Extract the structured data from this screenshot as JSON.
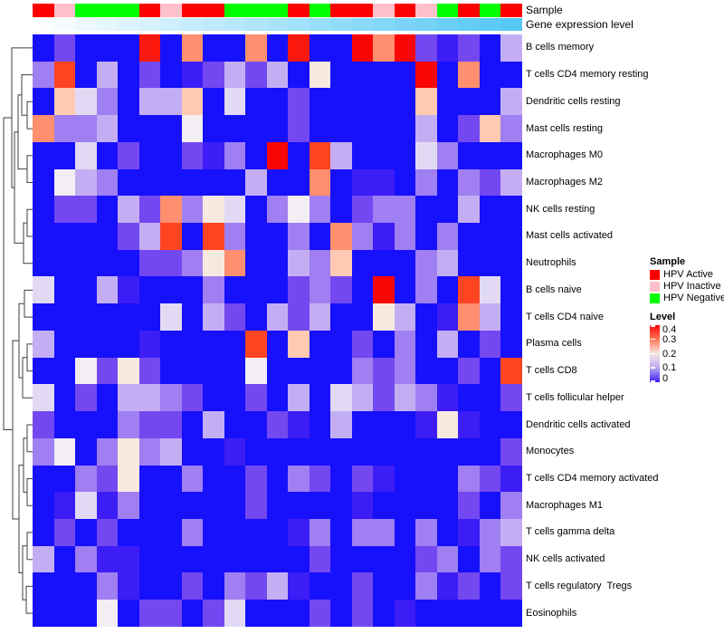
{
  "annotations": {
    "sample_label": "Sample",
    "gene_label": "Gene expression level",
    "sample_values": [
      "red",
      "pink",
      "green",
      "green",
      "green",
      "red",
      "pink",
      "red",
      "red",
      "green",
      "green",
      "green",
      "red",
      "green",
      "red",
      "red",
      "pink",
      "red",
      "pink",
      "green",
      "red",
      "green",
      "red"
    ],
    "sample_colors": {
      "red": "#FF0000",
      "pink": "#FFC0CB",
      "green": "#00FF00"
    },
    "gene_gradient": {
      "start": "#FCFEFF",
      "end": "#55C8F4"
    }
  },
  "chart_data": {
    "type": "heatmap",
    "n_columns": 23,
    "value_label": "Level",
    "value_range": [
      0,
      0.4
    ],
    "color_scale_anchors": [
      [
        0.0,
        "#0D0DFC"
      ],
      [
        0.05,
        "#3C1DF5"
      ],
      [
        0.08,
        "#7448F0"
      ],
      [
        0.11,
        "#9F7FF1"
      ],
      [
        0.13,
        "#C4AEF3"
      ],
      [
        0.15,
        "#E2DAF4"
      ],
      [
        0.16,
        "#F2EEF3"
      ],
      [
        0.18,
        "#F8E9DE"
      ],
      [
        0.21,
        "#FFC9B2"
      ],
      [
        0.27,
        "#FF8F6E"
      ],
      [
        0.33,
        "#FF4422"
      ],
      [
        0.4,
        "#FA0606"
      ]
    ],
    "rows": [
      {
        "label": "B cells memory",
        "values": [
          0.01,
          0.08,
          0.01,
          0.01,
          0.01,
          0.38,
          0.01,
          0.27,
          0.01,
          0.01,
          0.27,
          0.01,
          0.38,
          0.01,
          0.01,
          0.4,
          0.27,
          0.4,
          0.08,
          0.05,
          0.08,
          0.01,
          0.13
        ]
      },
      {
        "label": "T cells CD4 memory resting",
        "values": [
          0.11,
          0.33,
          0.01,
          0.13,
          0.01,
          0.08,
          0.01,
          0.05,
          0.08,
          0.13,
          0.08,
          0.13,
          0.01,
          0.18,
          0.01,
          0.01,
          0.01,
          0.01,
          0.4,
          0.01,
          0.27,
          0.01,
          0.01
        ]
      },
      {
        "label": "Dendritic cells resting",
        "values": [
          0.01,
          0.21,
          0.15,
          0.11,
          0.01,
          0.13,
          0.13,
          0.21,
          0.01,
          0.15,
          0.01,
          0.01,
          0.08,
          0.01,
          0.01,
          0.01,
          0.01,
          0.01,
          0.21,
          0.01,
          0.01,
          0.01,
          0.13
        ]
      },
      {
        "label": "Mast cells resting",
        "values": [
          0.27,
          0.11,
          0.11,
          0.13,
          0.01,
          0.01,
          0.01,
          0.16,
          0.01,
          0.01,
          0.01,
          0.01,
          0.08,
          0.01,
          0.01,
          0.01,
          0.01,
          0.01,
          0.13,
          0.01,
          0.08,
          0.21,
          0.11
        ]
      },
      {
        "label": "Macrophages M0",
        "values": [
          0.01,
          0.01,
          0.15,
          0.01,
          0.08,
          0.01,
          0.01,
          0.08,
          0.05,
          0.11,
          0.01,
          0.4,
          0.01,
          0.33,
          0.13,
          0.01,
          0.01,
          0.01,
          0.15,
          0.11,
          0.01,
          0.01,
          0.01
        ]
      },
      {
        "label": "Macrophages M2",
        "values": [
          0.01,
          0.16,
          0.13,
          0.11,
          0.01,
          0.01,
          0.01,
          0.01,
          0.01,
          0.01,
          0.13,
          0.01,
          0.01,
          0.27,
          0.01,
          0.05,
          0.05,
          0.01,
          0.11,
          0.01,
          0.11,
          0.08,
          0.13
        ]
      },
      {
        "label": "NK cells resting",
        "values": [
          0.01,
          0.08,
          0.08,
          0.01,
          0.13,
          0.08,
          0.27,
          0.11,
          0.18,
          0.15,
          0.01,
          0.11,
          0.16,
          0.11,
          0.01,
          0.08,
          0.11,
          0.11,
          0.01,
          0.01,
          0.13,
          0.01,
          0.01
        ]
      },
      {
        "label": "Mast cells activated",
        "values": [
          0.01,
          0.01,
          0.01,
          0.01,
          0.08,
          0.13,
          0.33,
          0.01,
          0.33,
          0.11,
          0.01,
          0.01,
          0.11,
          0.01,
          0.27,
          0.11,
          0.05,
          0.11,
          0.01,
          0.11,
          0.01,
          0.01,
          0.01
        ]
      },
      {
        "label": "Neutrophils",
        "values": [
          0.01,
          0.01,
          0.01,
          0.01,
          0.01,
          0.08,
          0.08,
          0.11,
          0.18,
          0.27,
          0.01,
          0.01,
          0.13,
          0.11,
          0.21,
          0.01,
          0.01,
          0.01,
          0.11,
          0.13,
          0.01,
          0.01,
          0.01
        ]
      },
      {
        "label": "B cells naive",
        "values": [
          0.15,
          0.01,
          0.01,
          0.13,
          0.05,
          0.01,
          0.01,
          0.01,
          0.11,
          0.01,
          0.01,
          0.01,
          0.08,
          0.11,
          0.08,
          0.01,
          0.4,
          0.01,
          0.11,
          0.01,
          0.33,
          0.15,
          0.01
        ]
      },
      {
        "label": "T cells CD4 naive",
        "values": [
          0.01,
          0.01,
          0.01,
          0.01,
          0.01,
          0.01,
          0.15,
          0.01,
          0.13,
          0.08,
          0.01,
          0.13,
          0.08,
          0.13,
          0.01,
          0.01,
          0.18,
          0.13,
          0.01,
          0.05,
          0.27,
          0.13,
          0.01
        ]
      },
      {
        "label": "Plasma cells",
        "values": [
          0.13,
          0.01,
          0.01,
          0.01,
          0.01,
          0.05,
          0.01,
          0.01,
          0.01,
          0.01,
          0.33,
          0.01,
          0.21,
          0.01,
          0.01,
          0.08,
          0.01,
          0.11,
          0.01,
          0.13,
          0.01,
          0.08,
          0.01
        ]
      },
      {
        "label": "T cells CD8",
        "values": [
          0.01,
          0.01,
          0.16,
          0.08,
          0.18,
          0.08,
          0.01,
          0.01,
          0.01,
          0.01,
          0.16,
          0.01,
          0.01,
          0.01,
          0.01,
          0.11,
          0.08,
          0.11,
          0.01,
          0.01,
          0.08,
          0.01,
          0.33
        ]
      },
      {
        "label": "T cells follicular helper",
        "values": [
          0.15,
          0.01,
          0.08,
          0.01,
          0.13,
          0.13,
          0.11,
          0.08,
          0.01,
          0.01,
          0.08,
          0.01,
          0.13,
          0.01,
          0.15,
          0.13,
          0.08,
          0.13,
          0.11,
          0.05,
          0.01,
          0.01,
          0.08
        ]
      },
      {
        "label": "Dendritic cells activated",
        "values": [
          0.08,
          0.01,
          0.01,
          0.01,
          0.11,
          0.08,
          0.08,
          0.01,
          0.13,
          0.01,
          0.01,
          0.08,
          0.05,
          0.01,
          0.13,
          0.01,
          0.01,
          0.01,
          0.05,
          0.18,
          0.05,
          0.01,
          0.01
        ]
      },
      {
        "label": "Monocytes",
        "values": [
          0.11,
          0.16,
          0.01,
          0.11,
          0.18,
          0.11,
          0.13,
          0.01,
          0.01,
          0.05,
          0.01,
          0.01,
          0.01,
          0.01,
          0.01,
          0.01,
          0.01,
          0.01,
          0.01,
          0.01,
          0.01,
          0.01,
          0.08
        ]
      },
      {
        "label": "T cells CD4 memory activated",
        "values": [
          0.01,
          0.01,
          0.11,
          0.08,
          0.18,
          0.01,
          0.01,
          0.11,
          0.01,
          0.01,
          0.08,
          0.01,
          0.11,
          0.08,
          0.01,
          0.08,
          0.05,
          0.01,
          0.01,
          0.01,
          0.11,
          0.08,
          0.05
        ]
      },
      {
        "label": "Macrophages M1",
        "values": [
          0.01,
          0.05,
          0.15,
          0.05,
          0.11,
          0.01,
          0.01,
          0.01,
          0.01,
          0.01,
          0.08,
          0.01,
          0.01,
          0.01,
          0.01,
          0.05,
          0.01,
          0.01,
          0.01,
          0.01,
          0.08,
          0.01,
          0.11
        ]
      },
      {
        "label": "T cells gamma delta",
        "values": [
          0.01,
          0.08,
          0.01,
          0.08,
          0.01,
          0.01,
          0.01,
          0.11,
          0.01,
          0.01,
          0.01,
          0.01,
          0.05,
          0.11,
          0.01,
          0.11,
          0.11,
          0.01,
          0.11,
          0.01,
          0.05,
          0.11,
          0.13
        ]
      },
      {
        "label": "NK cells activated",
        "values": [
          0.13,
          0.01,
          0.11,
          0.05,
          0.05,
          0.01,
          0.01,
          0.01,
          0.01,
          0.01,
          0.01,
          0.01,
          0.01,
          0.08,
          0.01,
          0.01,
          0.01,
          0.01,
          0.08,
          0.11,
          0.01,
          0.11,
          0.08
        ]
      },
      {
        "label": "T cells regulatory  Tregs",
        "values": [
          0.01,
          0.01,
          0.01,
          0.11,
          0.05,
          0.01,
          0.01,
          0.08,
          0.01,
          0.11,
          0.08,
          0.13,
          0.05,
          0.01,
          0.01,
          0.08,
          0.01,
          0.01,
          0.11,
          0.05,
          0.08,
          0.01,
          0.08
        ]
      },
      {
        "label": "Eosinophils",
        "values": [
          0.01,
          0.01,
          0.01,
          0.16,
          0.01,
          0.08,
          0.08,
          0.01,
          0.08,
          0.15,
          0.01,
          0.01,
          0.01,
          0.08,
          0.01,
          0.08,
          0.01,
          0.05,
          0.01,
          0.01,
          0.01,
          0.01,
          0.01
        ]
      }
    ]
  },
  "legend": {
    "sample_title": "Sample",
    "sample_items": [
      {
        "label": "HPV Active",
        "color": "#FF0000"
      },
      {
        "label": "HPV Inactive",
        "color": "#FFC0CB"
      },
      {
        "label": "HPV Negative",
        "color": "#00FF00"
      }
    ],
    "level_title": "Level",
    "level_ticks": [
      "0.4",
      "0.3",
      "0.2",
      "0.1",
      "0"
    ],
    "level_colors": [
      "#FA0606",
      "#FF7858",
      "#F8E9E5",
      "#BCA6F2",
      "#3820F5"
    ]
  }
}
